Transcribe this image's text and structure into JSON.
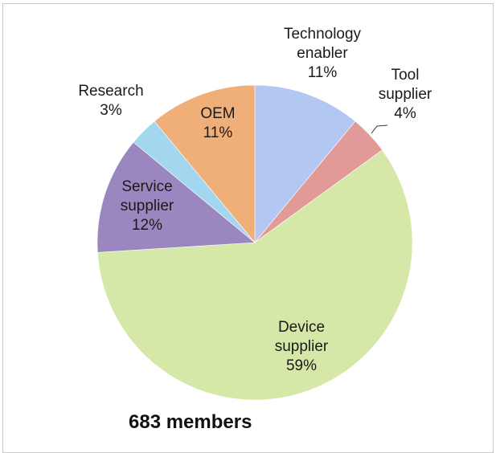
{
  "chart_data": {
    "type": "pie",
    "slices": [
      {
        "label": [
          "Technology",
          "enabler",
          "11%"
        ],
        "value": 11,
        "color": "#b2c7f2"
      },
      {
        "label": [
          "Tool",
          "supplier",
          "4%"
        ],
        "value": 4,
        "color": "#e29a98"
      },
      {
        "label": [
          "Device",
          "supplier",
          "59%"
        ],
        "value": 59,
        "color": "#d5e8a7"
      },
      {
        "label": [
          "Service",
          "supplier",
          "12%"
        ],
        "value": 12,
        "color": "#9b87bf"
      },
      {
        "label": [
          "Research",
          "3%"
        ],
        "value": 3,
        "color": "#a3d7f0"
      },
      {
        "label": [
          "OEM",
          "11%"
        ],
        "value": 11,
        "color": "#f0ae78"
      }
    ],
    "start_angle_deg": 0,
    "direction": "clockwise"
  },
  "footer": {
    "text": "683 members"
  }
}
